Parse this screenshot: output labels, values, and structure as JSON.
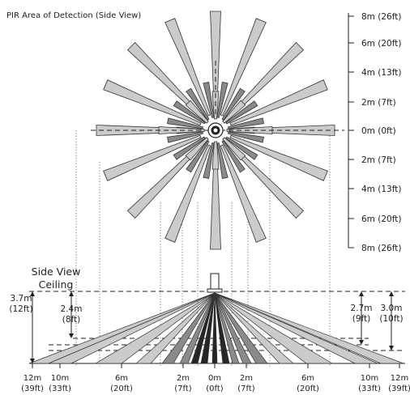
{
  "title": "PIR  Area of Detection (Side View)",
  "scale_labels": [
    "8m (26ft)",
    "6m (20ft)",
    "4m (13ft)",
    "2m (7ft)",
    "0m (0ft)",
    "2m (7ft)",
    "4m (13ft)",
    "6m (20ft)",
    "8m (26ft)"
  ],
  "side_view_label": "Side View",
  "ceiling_label": "Ceiling",
  "heights": {
    "h37": {
      "m": "3.7m",
      "ft": "(12ft)"
    },
    "h24": {
      "m": "2.4m",
      "ft": "(8ft)"
    },
    "h27": {
      "m": "2.7m",
      "ft": "(9ft)"
    },
    "h30": {
      "m": "3.0m",
      "ft": "(10ft)"
    }
  },
  "bottom_labels": [
    {
      "m": "12m",
      "ft": "(39ft)"
    },
    {
      "m": "10m",
      "ft": "(33ft)"
    },
    {
      "m": "6m",
      "ft": "(20ft)"
    },
    {
      "m": "2m",
      "ft": "(7ft)"
    },
    {
      "m": "0m",
      "ft": "(0ft)"
    },
    {
      "m": "2m",
      "ft": "(7ft)"
    },
    {
      "m": "6m",
      "ft": "(20ft)"
    },
    {
      "m": "10m",
      "ft": "(33ft)"
    },
    {
      "m": "12m",
      "ft": "(39ft)"
    }
  ],
  "colors": {
    "light": "#cbcbcb",
    "mid": "#8a8a8a",
    "dark": "#262626",
    "line": "#222222"
  }
}
